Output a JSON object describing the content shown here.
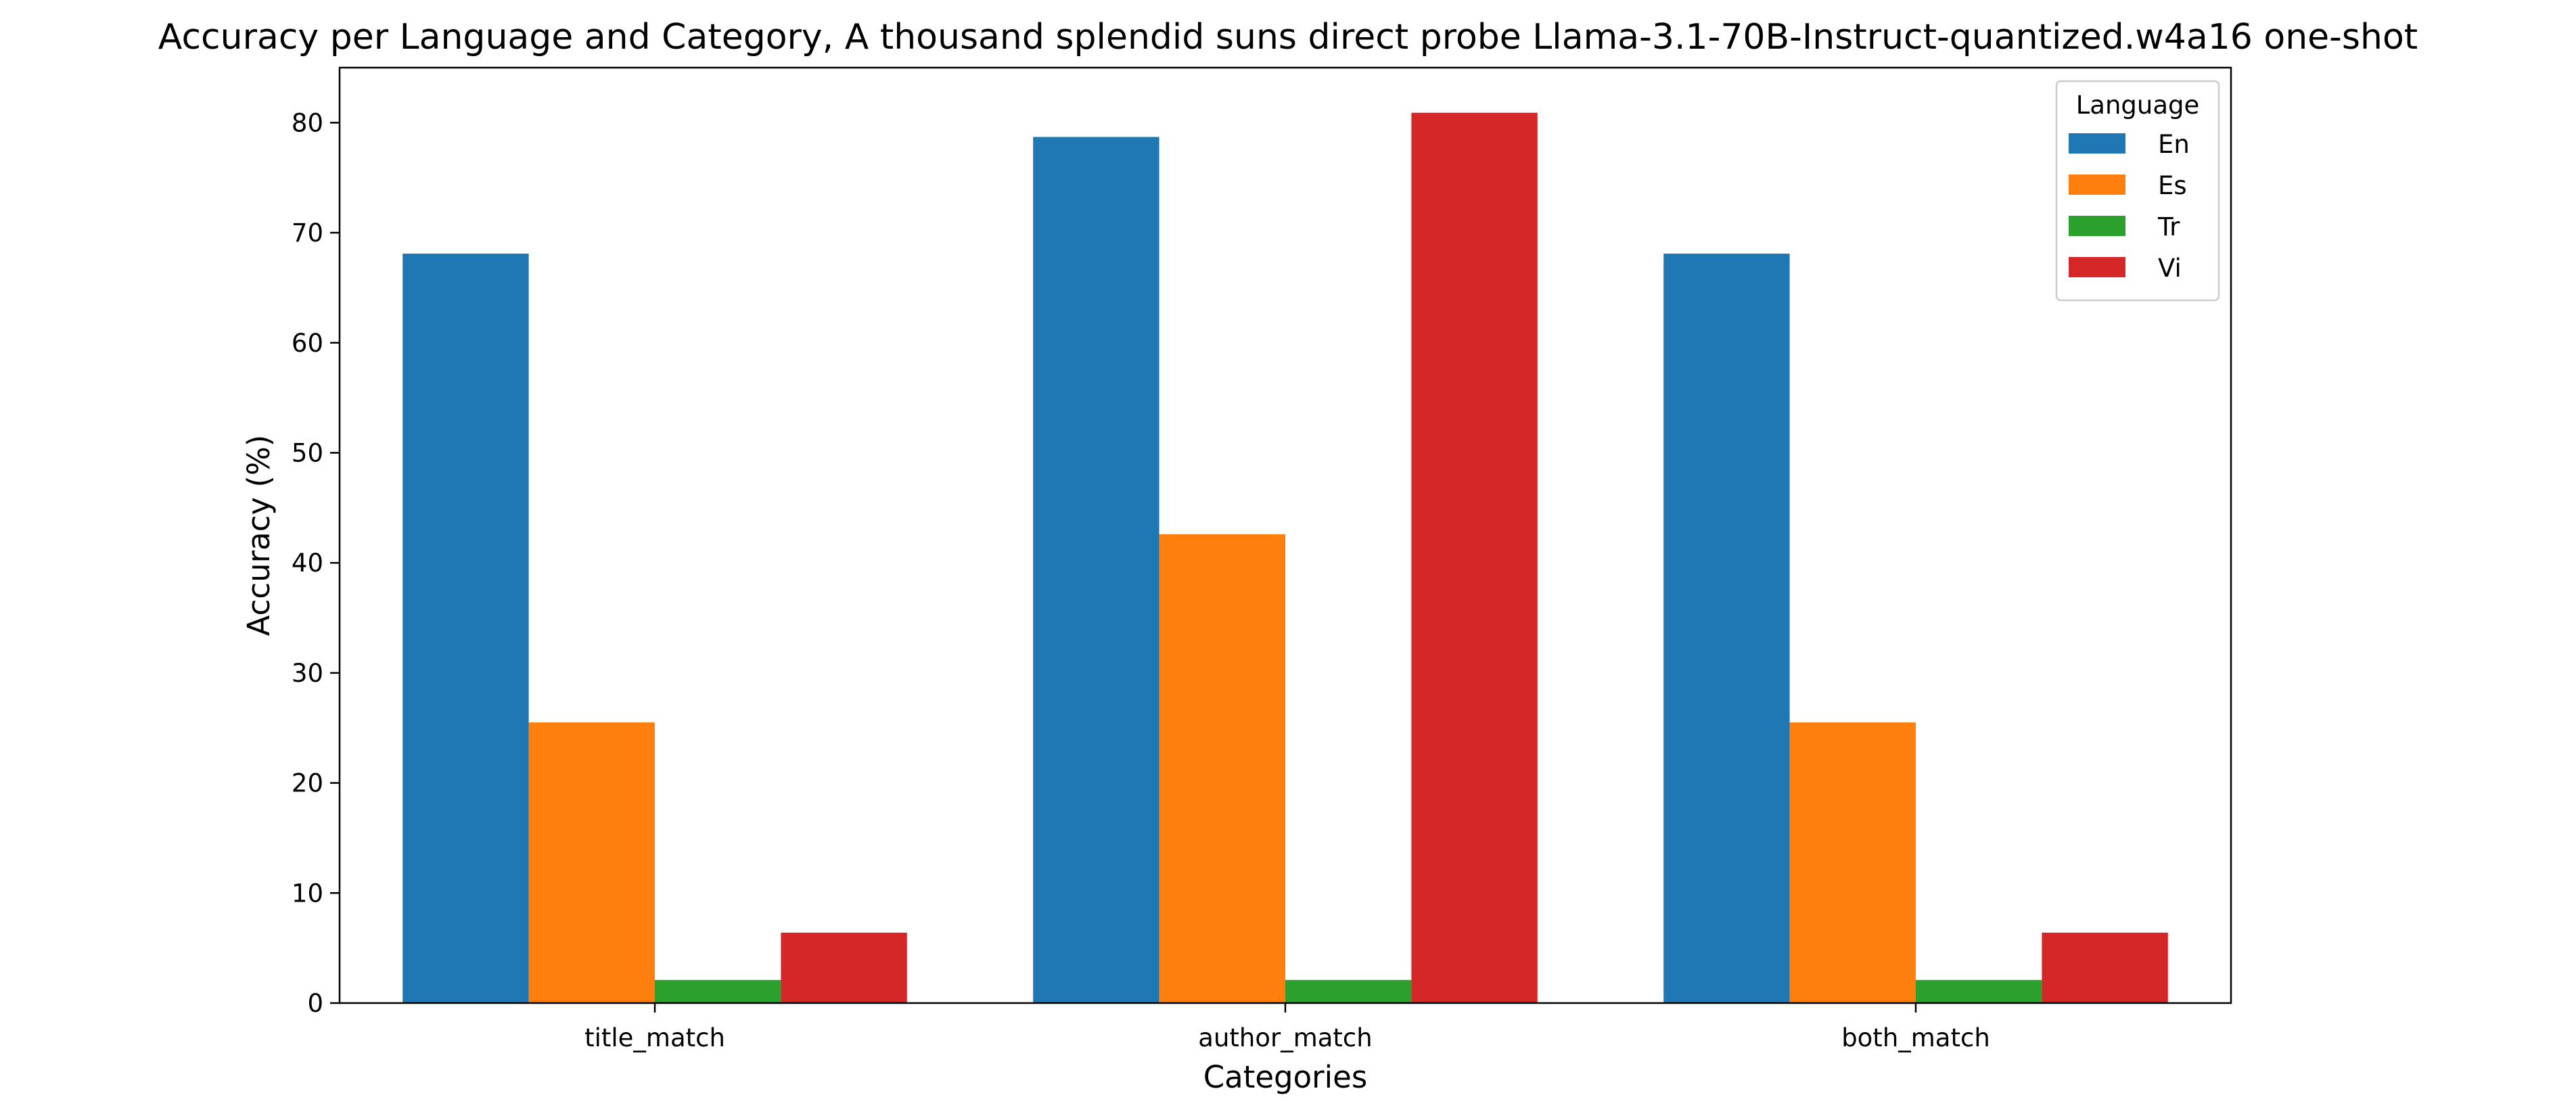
{
  "chart_data": {
    "type": "bar",
    "title": "Accuracy per Language and Category, A thousand splendid suns direct probe Llama-3.1-70B-Instruct-quantized.w4a16 one-shot",
    "xlabel": "Categories",
    "ylabel": "Accuracy (%)",
    "categories": [
      "title_match",
      "author_match",
      "both_match"
    ],
    "ylim": [
      0,
      85
    ],
    "yticks": [
      0,
      10,
      20,
      30,
      40,
      50,
      60,
      70,
      80
    ],
    "grid": false,
    "legend": {
      "title": "Language",
      "placement": "top-right"
    },
    "series": [
      {
        "name": "En",
        "color": "#1f77b4",
        "values": [
          68.1,
          78.7,
          68.1
        ]
      },
      {
        "name": "Es",
        "color": "#ff7f0e",
        "values": [
          25.5,
          42.6,
          25.5
        ]
      },
      {
        "name": "Tr",
        "color": "#2ca02c",
        "values": [
          2.1,
          2.1,
          2.1
        ]
      },
      {
        "name": "Vi",
        "color": "#d62728",
        "values": [
          6.4,
          80.9,
          6.4
        ]
      }
    ]
  }
}
